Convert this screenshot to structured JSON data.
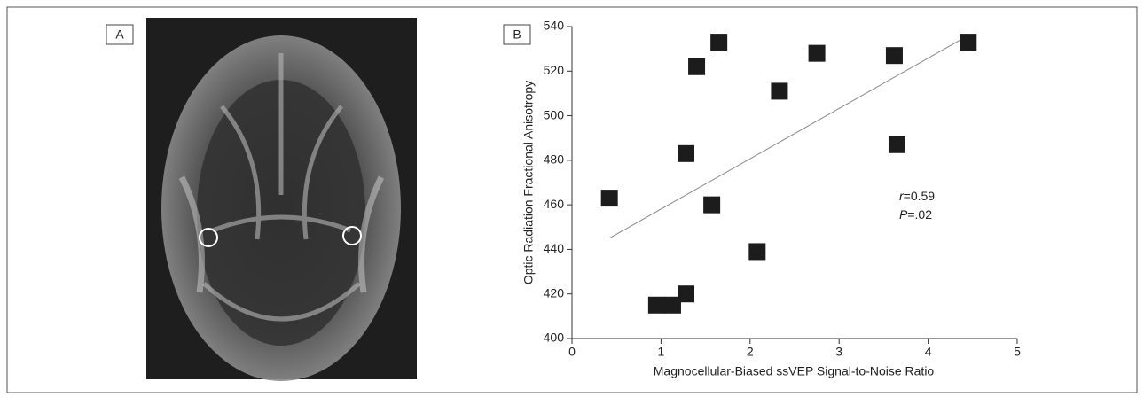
{
  "panel_a": {
    "label": "A"
  },
  "chart_data": {
    "type": "scatter",
    "panel_label": "B",
    "x_label": "Magnocellular-Biased ssVEP Signal-to-Noise Ratio",
    "y_label": "Optic Radiation Fractional Anisotropy",
    "x": [
      0.42,
      0.95,
      1.13,
      1.28,
      1.28,
      1.4,
      1.57,
      1.65,
      2.08,
      2.33,
      2.75,
      3.62,
      3.65,
      4.45
    ],
    "y": [
      463,
      415,
      415,
      420,
      483,
      522,
      460,
      533,
      439,
      511,
      528,
      527,
      487,
      533
    ],
    "color": "#1c1c1c",
    "trendline": {
      "x": [
        0.42,
        4.45
      ],
      "y": [
        445,
        536
      ]
    },
    "xlim": [
      0,
      5
    ],
    "xticks": [
      0,
      1,
      2,
      3,
      4,
      5
    ],
    "ylim": [
      400,
      540
    ],
    "yticks": [
      400,
      420,
      440,
      460,
      480,
      500,
      520,
      540
    ],
    "annotations": [
      {
        "italic": "r",
        "text": "=0.59"
      },
      {
        "italic": "P",
        "text": "=.02"
      }
    ]
  }
}
